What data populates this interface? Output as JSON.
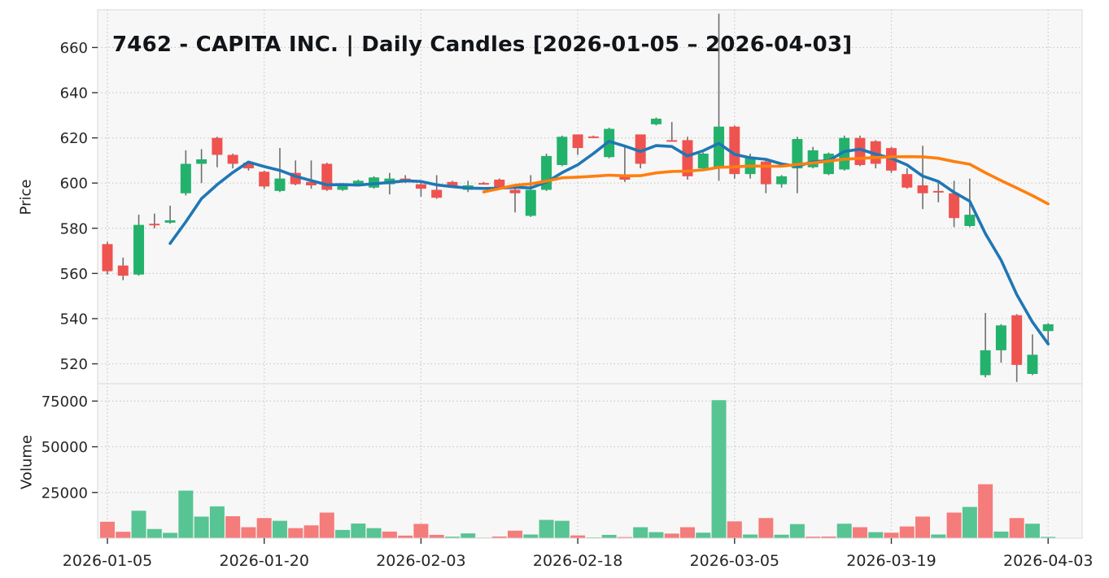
{
  "title": "7462 - CAPITA INC. | Daily Candles [2026-01-05 – 2026-04-03]",
  "axes": {
    "price": {
      "label": "Price",
      "ticks": [
        660,
        640,
        620,
        600,
        580,
        560,
        540,
        520
      ],
      "ylim": [
        511.2,
        676.7
      ]
    },
    "volume": {
      "label": "Volume",
      "ticks": [
        75000,
        50000,
        25000
      ],
      "ylim": [
        0,
        84500
      ]
    },
    "x": {
      "tick_labels": [
        "2026-01-05",
        "2026-01-20",
        "2026-02-03",
        "2026-02-18",
        "2026-03-05",
        "2026-03-19",
        "2026-04-03"
      ],
      "tick_indices": [
        0,
        10,
        20,
        30,
        40,
        50,
        60
      ]
    }
  },
  "chart_data": {
    "type": "candlestick",
    "subtype": "daily-ohlc-with-volume-panel",
    "date_range": [
      "2026-01-05",
      "2026-04-03"
    ],
    "columns": [
      "open",
      "high",
      "low",
      "close",
      "volume"
    ],
    "candles": [
      [
        573,
        574,
        559.5,
        561,
        9000
      ],
      [
        563.5,
        567,
        557,
        559,
        3500
      ],
      [
        559.5,
        586,
        559,
        581.5,
        15000
      ],
      [
        582,
        586.5,
        580,
        581.5,
        5000
      ],
      [
        582.5,
        590,
        582,
        583.5,
        2900
      ],
      [
        595.5,
        614.5,
        594.5,
        608.5,
        26000
      ],
      [
        608.5,
        615,
        600,
        610.5,
        11800
      ],
      [
        620,
        620.5,
        607,
        612.5,
        17400
      ],
      [
        612.5,
        613,
        606.5,
        608.5,
        12000
      ],
      [
        609,
        609.5,
        605.5,
        606.5,
        6000
      ],
      [
        605,
        605.5,
        597.5,
        598.5,
        11000
      ],
      [
        596.5,
        615.5,
        596,
        602,
        9500
      ],
      [
        604.5,
        610,
        599,
        599.5,
        5500
      ],
      [
        600.5,
        610,
        597.5,
        599,
        7000
      ],
      [
        608.5,
        609,
        596.5,
        597,
        14000
      ],
      [
        597,
        599.5,
        596.5,
        599,
        4500
      ],
      [
        599,
        601.5,
        598.5,
        601,
        8000
      ],
      [
        598,
        603,
        597.5,
        602.5,
        5500
      ],
      [
        599.5,
        604.5,
        595,
        602,
        3600
      ],
      [
        602,
        603.5,
        600,
        600.5,
        1400
      ],
      [
        599.5,
        600,
        594,
        597.5,
        7800
      ],
      [
        597,
        603.5,
        593,
        593.5,
        1800
      ],
      [
        600.5,
        601,
        598,
        598.5,
        800
      ],
      [
        597,
        601,
        596,
        599,
        2600
      ],
      [
        600,
        600.5,
        599.5,
        599.6,
        300
      ],
      [
        601.5,
        602,
        598,
        598,
        900
      ],
      [
        597,
        597.5,
        587,
        595.5,
        4100
      ],
      [
        585.5,
        603.5,
        585,
        597,
        2000
      ],
      [
        597,
        613,
        596.5,
        612,
        10000
      ],
      [
        608,
        621,
        607.5,
        620.5,
        9500
      ],
      [
        621.5,
        621.5,
        612.5,
        615.5,
        1500
      ],
      [
        620.6,
        621,
        620,
        620.4,
        400
      ],
      [
        611.5,
        624.5,
        611,
        624,
        1800
      ],
      [
        603.5,
        617,
        600.5,
        601.5,
        600
      ],
      [
        621.5,
        621.5,
        606.5,
        608.5,
        6000
      ],
      [
        626,
        629,
        625.5,
        628.5,
        3300
      ],
      [
        619,
        627,
        618.5,
        618.5,
        2500
      ],
      [
        619,
        620.5,
        601.5,
        603,
        6000
      ],
      [
        606.5,
        613.5,
        606,
        613,
        3000
      ],
      [
        607,
        675,
        601,
        625,
        75500
      ],
      [
        625,
        625.5,
        602,
        604,
        9200
      ],
      [
        604,
        613,
        602,
        611,
        2000
      ],
      [
        609.5,
        610,
        595.5,
        599.5,
        11000
      ],
      [
        599.5,
        603.5,
        598,
        603,
        1900
      ],
      [
        606.5,
        620.5,
        595.5,
        619.5,
        7700
      ],
      [
        607,
        616,
        606.5,
        614.5,
        800
      ],
      [
        604,
        613.5,
        603.5,
        613,
        900
      ],
      [
        606,
        621,
        605.5,
        620,
        7900
      ],
      [
        620,
        621,
        607.5,
        608,
        6000
      ],
      [
        618.5,
        619,
        606.5,
        608.5,
        3300
      ],
      [
        615.5,
        616,
        604.5,
        605.5,
        3000
      ],
      [
        604,
        606.5,
        597.5,
        598,
        6400
      ],
      [
        599,
        616.5,
        588.5,
        595.5,
        11800
      ],
      [
        596.5,
        601,
        591.5,
        596,
        2000
      ],
      [
        595.5,
        601,
        580.5,
        584.5,
        14000
      ],
      [
        581,
        602,
        580.5,
        586,
        17100
      ],
      [
        515,
        542.5,
        514,
        526,
        29500
      ],
      [
        526,
        537.5,
        520.5,
        537,
        3600
      ],
      [
        541.5,
        542,
        512,
        519.5,
        11000
      ],
      [
        515.5,
        533,
        515,
        524,
        7900
      ],
      [
        534.5,
        538,
        529,
        537.5,
        700
      ]
    ],
    "overlays": [
      {
        "name": "SMA-5 of close",
        "type": "sma",
        "window": 5,
        "color": "#1f77b4"
      },
      {
        "name": "SMA-25 of close",
        "type": "sma",
        "window": 25,
        "color": "#ff7f0e"
      }
    ],
    "legend": "none",
    "grid": "dotted",
    "colors": {
      "candle_up": "#23b26b",
      "candle_down": "#ef5350",
      "volume_up": "#57c493",
      "volume_down": "#f47c7a",
      "wick": "#6e6e6e",
      "grid": "#c9c9c9",
      "plot_bg": "#f7f7f7",
      "figure_bg": "#ffffff",
      "spine": "#d9d9d9",
      "tick_text": "#262626",
      "title_text": "#111418"
    }
  }
}
